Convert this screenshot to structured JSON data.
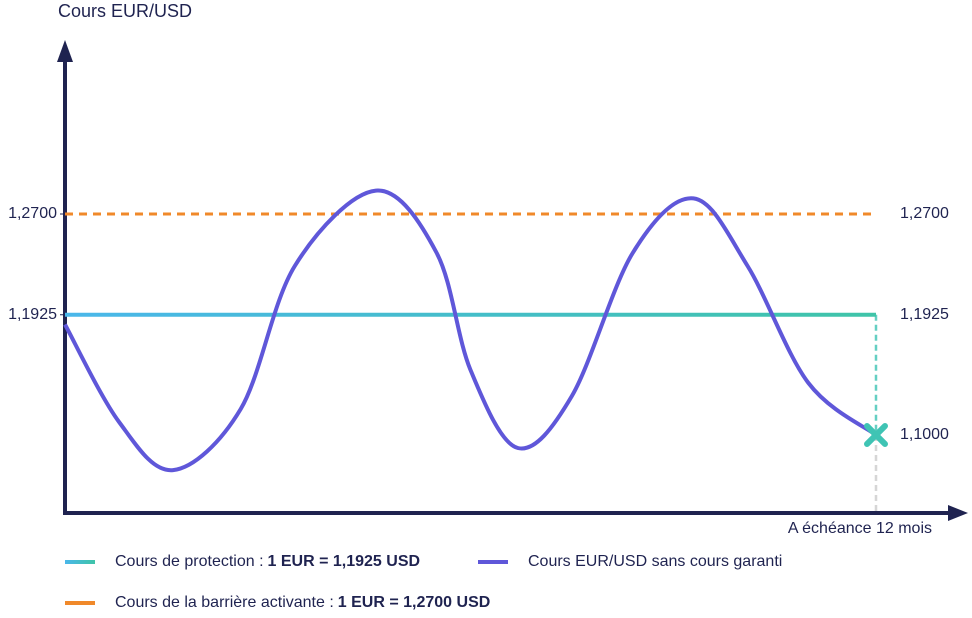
{
  "chart_data": {
    "type": "line",
    "title": "Cours EUR/USD",
    "xlabel": "A échéance 12 mois",
    "xlim": [
      0,
      12
    ],
    "ylim": [
      1.04,
      1.4
    ],
    "yticks": [
      {
        "value": 1.27,
        "label": "1,2700"
      },
      {
        "value": 1.1925,
        "label": "1,1925"
      }
    ],
    "right_ticks": [
      {
        "value": 1.27,
        "label": "1,2700"
      },
      {
        "value": 1.1925,
        "label": "1,1925"
      },
      {
        "value": 1.1,
        "label": "1,1000"
      }
    ],
    "series": [
      {
        "name": "Cours de protection :",
        "legend_detail": "1 EUR = 1,1925 USD",
        "color": "#3fc4a8",
        "color_start": "#4ab7ea",
        "style": "solid",
        "x": [
          0,
          12
        ],
        "values": [
          1.1925,
          1.1925
        ]
      },
      {
        "name": "Cours EUR/USD sans cours garanti",
        "color": "#5f57d9",
        "style": "curve",
        "x": [
          0,
          0.8,
          1.6,
          2.6,
          3.4,
          4.6,
          5.5,
          6.0,
          6.7,
          7.5,
          8.4,
          9.3,
          10.1,
          11.0,
          12
        ],
        "values": [
          1.185,
          1.11,
          1.073,
          1.12,
          1.23,
          1.288,
          1.24,
          1.15,
          1.09,
          1.13,
          1.24,
          1.282,
          1.23,
          1.14,
          1.1
        ]
      },
      {
        "name": "Cours de la barrière activante  :",
        "legend_detail": "1 EUR = 1,2700 USD",
        "color": "#f0892a",
        "style": "dashed",
        "x": [
          0,
          12
        ],
        "values": [
          1.27,
          1.27
        ]
      }
    ],
    "end_marker": {
      "x": 12,
      "value": 1.1,
      "color": "#3fc4b4"
    }
  }
}
